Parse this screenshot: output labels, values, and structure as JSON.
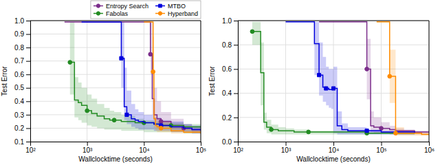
{
  "chart_data": [
    {
      "type": "step",
      "log": "x",
      "grid": true,
      "legend": "upper right",
      "xlabel": "Wallclocktime (seconds)",
      "ylabel": "Test Error",
      "xlim": [
        100,
        100000
      ],
      "ylim": [
        0.1,
        1.0
      ],
      "xticks": [
        {
          "value": 100,
          "label": "10²"
        },
        {
          "value": 1000,
          "label": "10³"
        },
        {
          "value": 10000,
          "label": "10⁴"
        },
        {
          "value": 100000,
          "label": "10⁵"
        }
      ],
      "yticks": [
        0.1,
        0.2,
        0.3,
        0.4,
        0.5,
        0.6,
        0.7,
        0.8,
        0.9,
        {
          "value": 1.0,
          "label": "1.0"
        }
      ],
      "series": [
        {
          "name": "Entropy Search",
          "color": "#7B2D8B",
          "marker": "circle",
          "x": [
            400,
            500,
            700,
            1000,
            2000,
            3000,
            5000,
            7000,
            10000,
            13000,
            14000,
            15000,
            17000,
            20000,
            30000,
            50000,
            70000,
            100000
          ],
          "values": [
            0.99,
            0.99,
            0.99,
            0.99,
            0.99,
            0.99,
            0.99,
            0.99,
            0.99,
            0.75,
            0.42,
            0.3,
            0.27,
            0.25,
            0.22,
            0.2,
            0.19,
            0.18
          ],
          "y_low": [
            0.99,
            0.99,
            0.99,
            0.99,
            0.99,
            0.99,
            0.99,
            0.99,
            0.99,
            0.6,
            0.3,
            0.25,
            0.23,
            0.21,
            0.19,
            0.18,
            0.17,
            0.17
          ],
          "y_high": [
            0.99,
            0.99,
            0.99,
            0.99,
            0.99,
            0.99,
            0.99,
            0.99,
            0.99,
            0.99,
            0.7,
            0.5,
            0.4,
            0.32,
            0.27,
            0.23,
            0.21,
            0.2
          ],
          "marker_x": [
            13000,
            20000,
            50000
          ]
        },
        {
          "name": "Fabolas",
          "color": "#228B22",
          "marker": "circle",
          "x": [
            500,
            600,
            700,
            800,
            1000,
            1200,
            1500,
            2000,
            2500,
            3000,
            4000,
            5000,
            7000,
            10000,
            15000,
            20000,
            30000,
            50000,
            70000,
            100000
          ],
          "values": [
            0.69,
            0.41,
            0.39,
            0.37,
            0.33,
            0.31,
            0.29,
            0.27,
            0.26,
            0.26,
            0.25,
            0.25,
            0.24,
            0.24,
            0.23,
            0.22,
            0.22,
            0.21,
            0.21,
            0.21
          ],
          "y_low": [
            0.45,
            0.28,
            0.26,
            0.24,
            0.22,
            0.21,
            0.2,
            0.19,
            0.19,
            0.19,
            0.18,
            0.18,
            0.18,
            0.17,
            0.17,
            0.17,
            0.17,
            0.16,
            0.16,
            0.16
          ],
          "y_high": [
            0.99,
            0.58,
            0.54,
            0.5,
            0.45,
            0.42,
            0.38,
            0.35,
            0.33,
            0.32,
            0.3,
            0.29,
            0.27,
            0.26,
            0.25,
            0.24,
            0.24,
            0.23,
            0.23,
            0.22
          ],
          "marker_x": [
            500,
            1000,
            3000,
            10000,
            30000
          ]
        },
        {
          "name": "MTBO",
          "color": "#0000DD",
          "marker": "square",
          "x": [
            800,
            1000,
            1500,
            2000,
            3000,
            4000,
            4500,
            5000,
            6000,
            7000,
            8000,
            10000,
            15000,
            20000,
            30000,
            50000,
            70000,
            100000
          ],
          "values": [
            0.99,
            0.99,
            0.99,
            0.99,
            0.99,
            0.72,
            0.36,
            0.3,
            0.27,
            0.26,
            0.25,
            0.24,
            0.23,
            0.22,
            0.21,
            0.2,
            0.19,
            0.19
          ],
          "y_low": [
            0.99,
            0.99,
            0.99,
            0.99,
            0.99,
            0.5,
            0.26,
            0.23,
            0.21,
            0.2,
            0.19,
            0.19,
            0.18,
            0.18,
            0.17,
            0.17,
            0.16,
            0.16
          ],
          "y_high": [
            0.99,
            0.99,
            0.99,
            0.99,
            0.99,
            0.99,
            0.65,
            0.48,
            0.38,
            0.34,
            0.32,
            0.3,
            0.28,
            0.26,
            0.25,
            0.23,
            0.22,
            0.21
          ],
          "marker_x": [
            4000,
            5000,
            20000
          ]
        },
        {
          "name": "Hyperband",
          "color": "#FF8C00",
          "marker": "circle",
          "x": [
            10000,
            12000,
            14000,
            14500,
            15000,
            16000,
            17000,
            20000,
            30000,
            50000,
            70000,
            100000
          ],
          "values": [
            0.99,
            0.99,
            0.99,
            0.62,
            0.27,
            0.22,
            0.21,
            0.2,
            0.18,
            0.17,
            0.17,
            0.16
          ],
          "y_low": [
            0.99,
            0.99,
            0.99,
            0.42,
            0.2,
            0.18,
            0.17,
            0.17,
            0.16,
            0.16,
            0.16,
            0.15
          ],
          "y_high": [
            0.99,
            0.99,
            0.99,
            0.88,
            0.42,
            0.3,
            0.27,
            0.25,
            0.22,
            0.2,
            0.19,
            0.18
          ],
          "marker_x": [
            14500,
            20000
          ]
        }
      ]
    },
    {
      "type": "step",
      "log": "x",
      "grid": true,
      "xlabel": "Wallclocktime (seconds)",
      "ylabel": "Test Error",
      "xlim": [
        100,
        1000000
      ],
      "ylim": [
        0.0,
        1.0
      ],
      "xticks": [
        {
          "value": 100,
          "label": "10²"
        },
        {
          "value": 1000,
          "label": "10³"
        },
        {
          "value": 10000,
          "label": "10⁴"
        },
        {
          "value": 100000,
          "label": "10⁵"
        },
        {
          "value": 1000000,
          "label": "10⁶"
        }
      ],
      "yticks": [
        {
          "value": 0.0,
          "label": "0.0"
        },
        0.2,
        0.4,
        0.6,
        0.8,
        {
          "value": 1.0,
          "label": "1.0"
        }
      ],
      "series": [
        {
          "name": "Entropy Search",
          "color": "#7B2D8B",
          "marker": "circle",
          "x": [
            5000,
            10000,
            20000,
            30000,
            40000,
            50000,
            60000,
            70000,
            100000,
            150000,
            200000,
            300000,
            500000,
            700000,
            1000000
          ],
          "values": [
            0.99,
            0.99,
            0.99,
            0.99,
            0.99,
            0.6,
            0.13,
            0.12,
            0.11,
            0.1,
            0.09,
            0.09,
            0.08,
            0.08,
            0.08
          ],
          "y_low": [
            0.99,
            0.99,
            0.99,
            0.99,
            0.99,
            0.35,
            0.08,
            0.07,
            0.07,
            0.06,
            0.06,
            0.06,
            0.06,
            0.06,
            0.06
          ],
          "y_high": [
            0.99,
            0.99,
            0.99,
            0.99,
            0.99,
            0.85,
            0.25,
            0.2,
            0.16,
            0.13,
            0.11,
            0.1,
            0.09,
            0.09,
            0.09
          ],
          "marker_x": [
            50000,
            100000
          ]
        },
        {
          "name": "Fabolas",
          "color": "#228B22",
          "marker": "circle",
          "x": [
            200,
            300,
            350,
            400,
            500,
            700,
            1000,
            1500,
            2000,
            3000,
            5000,
            10000,
            20000,
            50000,
            100000,
            200000,
            500000
          ],
          "values": [
            0.91,
            0.57,
            0.16,
            0.12,
            0.1,
            0.09,
            0.09,
            0.08,
            0.08,
            0.08,
            0.08,
            0.08,
            0.08,
            0.07,
            0.07,
            0.07,
            0.07
          ],
          "y_low": [
            0.8,
            0.3,
            0.1,
            0.07,
            0.06,
            0.06,
            0.06,
            0.06,
            0.06,
            0.06,
            0.06,
            0.06,
            0.06,
            0.06,
            0.06,
            0.06,
            0.06
          ],
          "y_high": [
            0.99,
            0.82,
            0.24,
            0.18,
            0.14,
            0.12,
            0.11,
            0.1,
            0.1,
            0.09,
            0.09,
            0.09,
            0.09,
            0.08,
            0.08,
            0.08,
            0.08
          ],
          "marker_x": [
            200,
            500,
            3000,
            50000
          ]
        },
        {
          "name": "MTBO",
          "color": "#0000DD",
          "marker": "square",
          "x": [
            1000,
            2000,
            3000,
            4000,
            5000,
            6000,
            7000,
            8000,
            9000,
            10000,
            12000,
            15000,
            20000,
            50000,
            100000,
            200000,
            500000
          ],
          "values": [
            0.99,
            0.99,
            0.99,
            0.81,
            0.55,
            0.45,
            0.44,
            0.43,
            0.43,
            0.44,
            0.13,
            0.1,
            0.09,
            0.09,
            0.08,
            0.08,
            0.07
          ],
          "y_low": [
            0.99,
            0.99,
            0.99,
            0.55,
            0.38,
            0.33,
            0.3,
            0.28,
            0.27,
            0.07,
            0.06,
            0.06,
            0.06,
            0.06,
            0.06,
            0.06,
            0.06
          ],
          "y_high": [
            0.99,
            0.99,
            0.99,
            0.99,
            0.82,
            0.7,
            0.62,
            0.6,
            0.6,
            0.62,
            0.25,
            0.15,
            0.12,
            0.1,
            0.09,
            0.09,
            0.08
          ],
          "marker_x": [
            5000,
            7000,
            10000,
            50000
          ]
        },
        {
          "name": "Hyperband",
          "color": "#FF8C00",
          "marker": "circle",
          "x": [
            80000,
            100000,
            120000,
            150000,
            200000,
            300000,
            500000,
            700000,
            1000000
          ],
          "values": [
            0.99,
            0.99,
            0.99,
            0.54,
            0.07,
            0.07,
            0.07,
            0.06,
            0.06
          ],
          "y_low": [
            0.99,
            0.99,
            0.99,
            0.32,
            0.05,
            0.05,
            0.05,
            0.05,
            0.05
          ],
          "y_high": [
            0.99,
            0.99,
            0.99,
            0.76,
            0.12,
            0.09,
            0.08,
            0.08,
            0.08
          ],
          "marker_x": [
            150000,
            200000
          ]
        }
      ]
    }
  ]
}
